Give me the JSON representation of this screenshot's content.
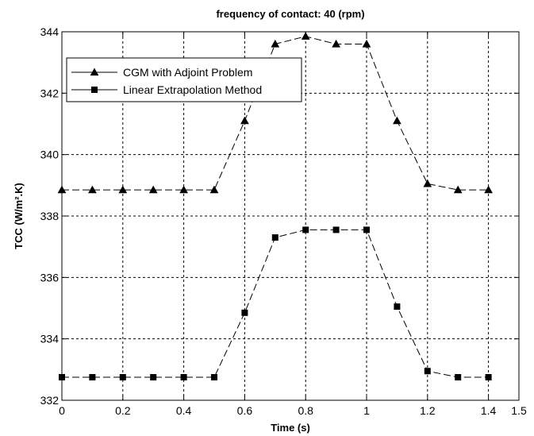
{
  "chart_data": {
    "type": "line",
    "title": "frequency of contact: 40 (rpm)",
    "xlabel": "Time (s)",
    "ylabel": "TCC (W/m².K)",
    "xlim": [
      0,
      1.5
    ],
    "ylim": [
      332,
      344
    ],
    "x_ticks": [
      "0",
      "0.2",
      "0.4",
      "0.6",
      "0.8",
      "1",
      "1.2",
      "1.4",
      "1.5"
    ],
    "y_ticks": [
      "332",
      "334",
      "336",
      "338",
      "340",
      "342",
      "344"
    ],
    "grid": true,
    "legend_position": "top-left",
    "x": [
      0,
      0.1,
      0.2,
      0.3,
      0.4,
      0.5,
      0.6,
      0.7,
      0.8,
      0.9,
      1.0,
      1.1,
      1.2,
      1.3,
      1.4
    ],
    "series": [
      {
        "name": "CGM with Adjoint Problem",
        "marker": "triangle",
        "color": "#000000",
        "values": [
          338.85,
          338.85,
          338.85,
          338.85,
          338.85,
          338.85,
          341.1,
          343.6,
          343.85,
          343.6,
          343.6,
          341.1,
          339.05,
          338.85,
          338.85
        ]
      },
      {
        "name": "Linear Extrapolation Method",
        "marker": "square",
        "color": "#000000",
        "values": [
          332.75,
          332.75,
          332.75,
          332.75,
          332.75,
          332.75,
          334.85,
          337.3,
          337.55,
          337.55,
          337.55,
          335.05,
          332.95,
          332.75,
          332.75
        ]
      }
    ]
  }
}
